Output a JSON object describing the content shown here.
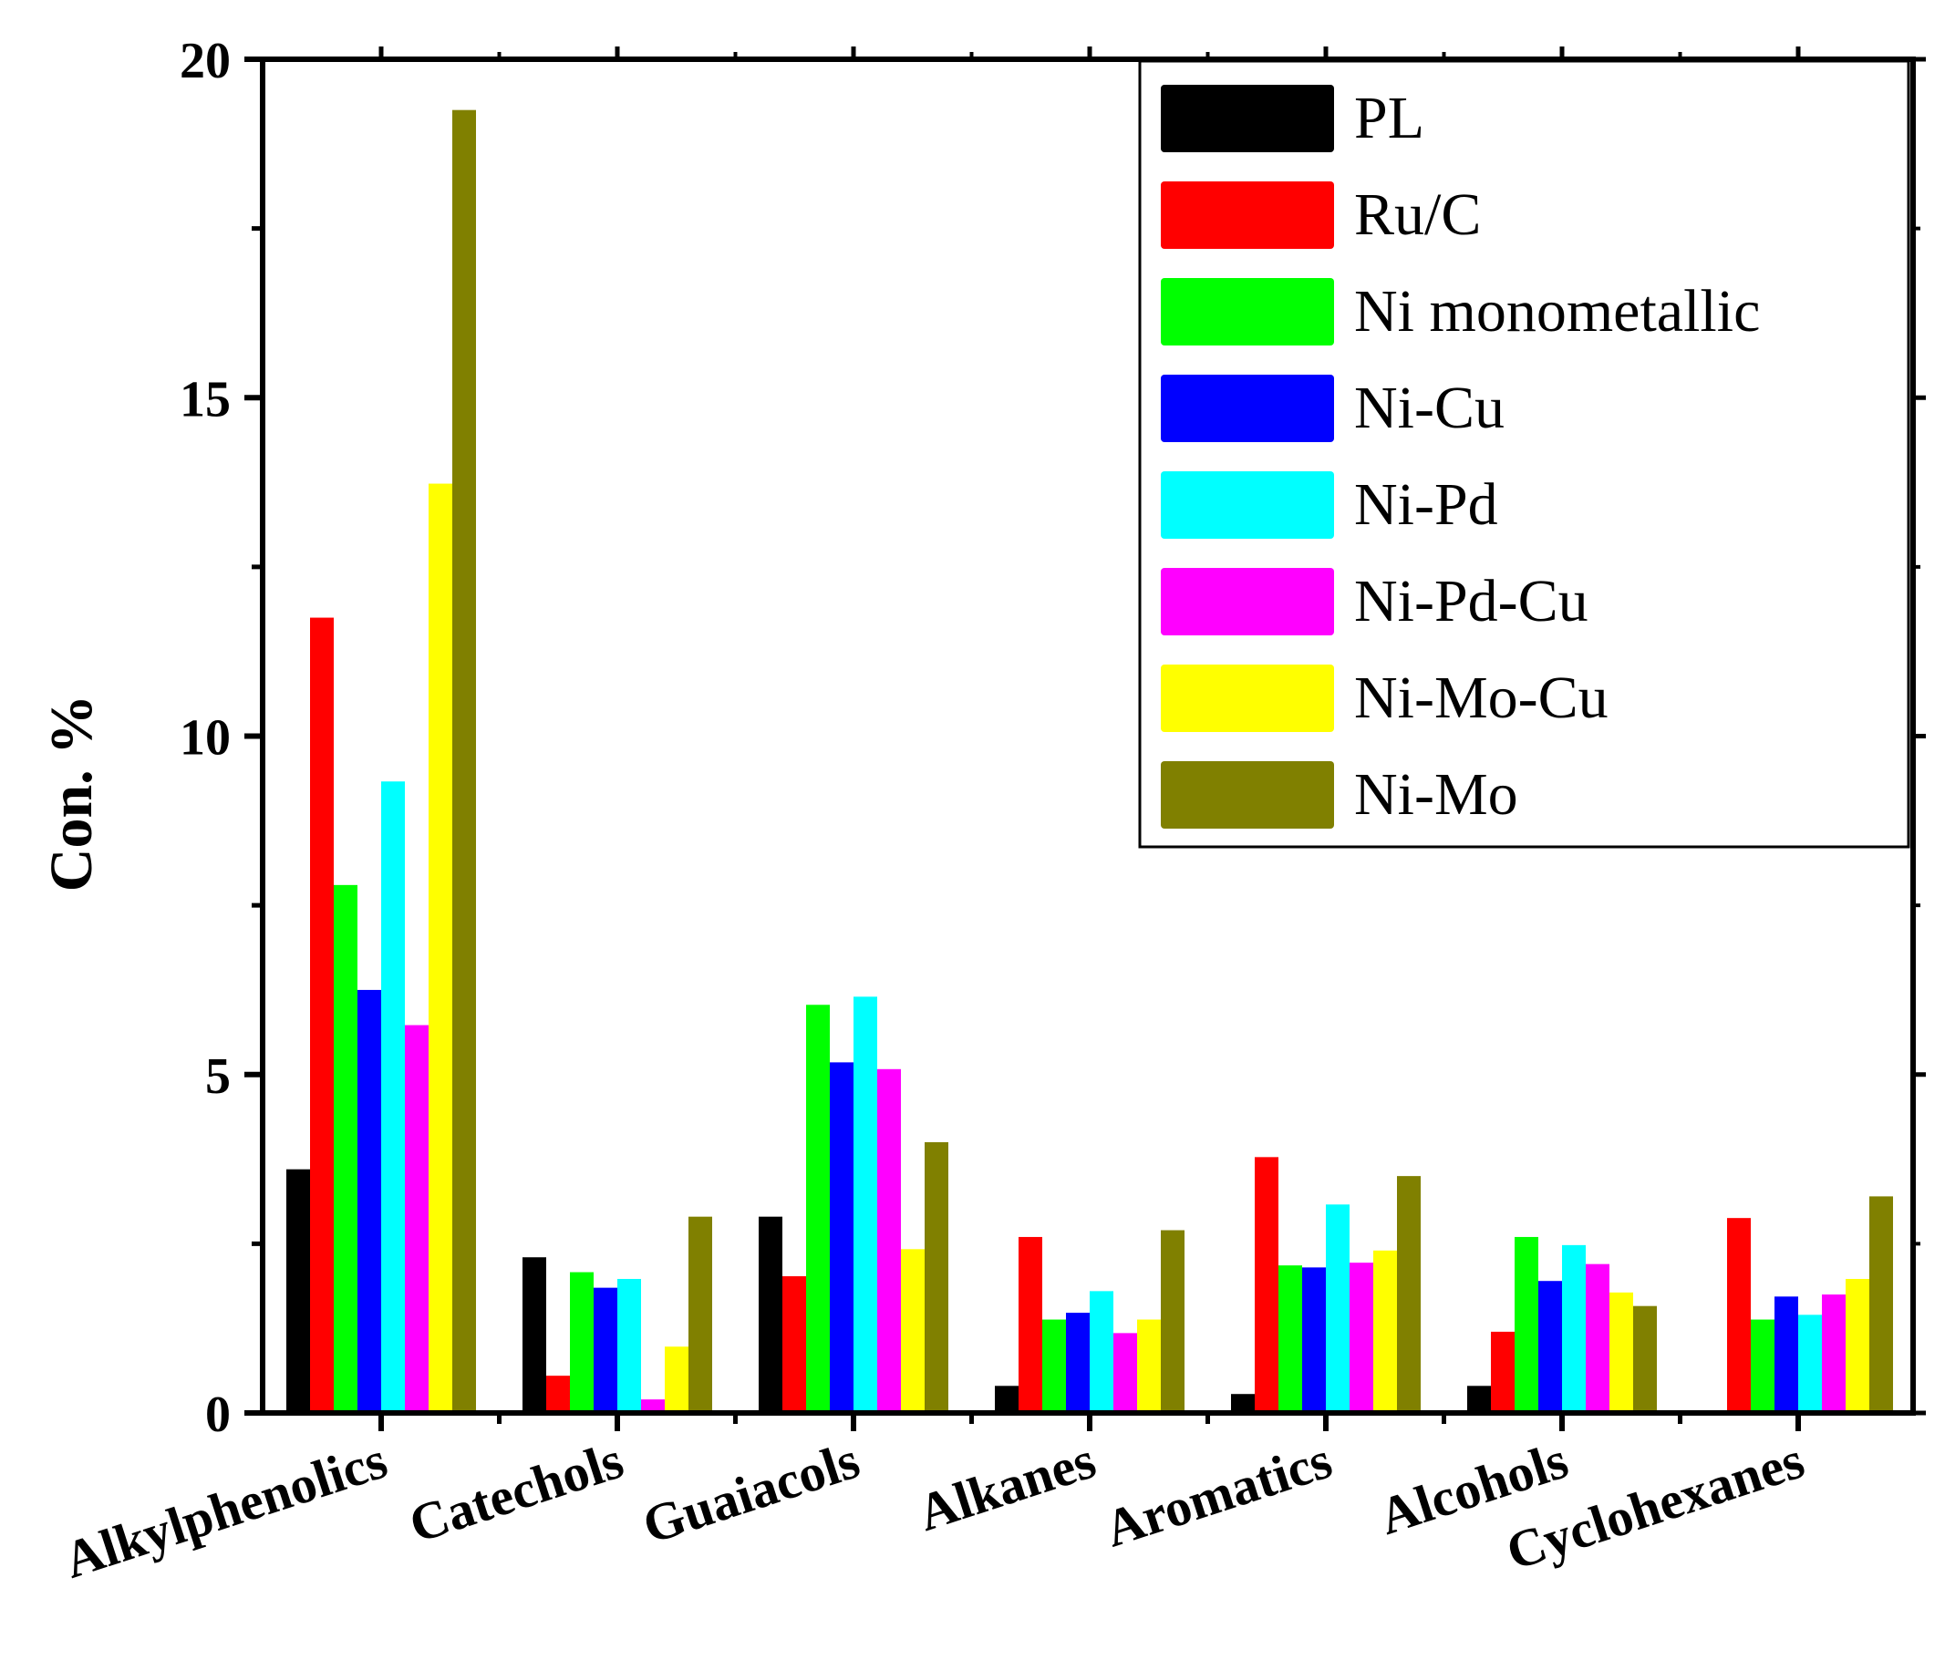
{
  "chart_data": {
    "type": "bar",
    "title": "",
    "xlabel": "",
    "ylabel": "Con. %",
    "ylim": [
      0,
      20
    ],
    "yticks": [
      "0",
      "5",
      "10",
      "15",
      "20"
    ],
    "grid": false,
    "legend_position": "top-right",
    "categories": [
      "Alkylphenolics",
      "Catechols",
      "Guaiacols",
      "Alkanes",
      "Aromatics",
      "Alcohols",
      "Cyclohexanes"
    ],
    "series": [
      {
        "name": "PL",
        "color": "#000000",
        "values": [
          3.6,
          2.3,
          2.9,
          0.4,
          0.28,
          0.4,
          0
        ]
      },
      {
        "name": "Ru/C",
        "color": "#ff0000",
        "values": [
          11.75,
          0.55,
          2.02,
          2.6,
          3.78,
          1.2,
          2.88
        ]
      },
      {
        "name": "Ni monometallic",
        "color": "#00ff00",
        "values": [
          7.8,
          2.08,
          6.03,
          1.38,
          2.18,
          2.6,
          1.38
        ]
      },
      {
        "name": "Ni-Cu",
        "color": "#0000ff",
        "values": [
          6.25,
          1.85,
          5.18,
          1.48,
          2.15,
          1.95,
          1.72
        ]
      },
      {
        "name": "Ni-Pd",
        "color": "#00ffff",
        "values": [
          9.33,
          1.98,
          6.15,
          1.8,
          3.08,
          2.48,
          1.45
        ]
      },
      {
        "name": "Ni-Pd-Cu",
        "color": "#ff00ff",
        "values": [
          5.73,
          0.2,
          5.08,
          1.18,
          2.22,
          2.2,
          1.75
        ]
      },
      {
        "name": "Ni-Mo-Cu",
        "color": "#ffff00",
        "values": [
          13.73,
          0.98,
          2.42,
          1.38,
          2.4,
          1.78,
          1.98
        ]
      },
      {
        "name": "Ni-Mo",
        "color": "#808000",
        "values": [
          19.25,
          2.9,
          4.0,
          2.7,
          3.5,
          1.58,
          3.2
        ]
      }
    ]
  }
}
